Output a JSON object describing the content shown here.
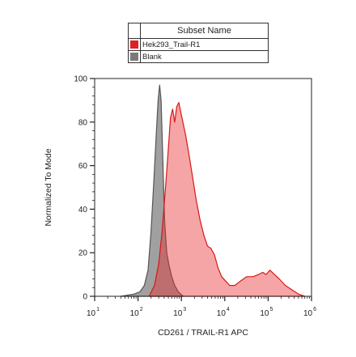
{
  "chart_data": {
    "type": "area",
    "title": "",
    "xlabel": "CD261 / TRAIL-R1 APC",
    "ylabel": "Normalized To Mode",
    "x_scale": "log",
    "xlim": [
      10,
      1000000
    ],
    "ylim": [
      0,
      100
    ],
    "yticks": [
      0,
      20,
      40,
      60,
      80,
      100
    ],
    "xticks": [
      {
        "base": "10",
        "exp": "1",
        "value": 10
      },
      {
        "base": "10",
        "exp": "2",
        "value": 100
      },
      {
        "base": "10",
        "exp": "3",
        "value": 1000
      },
      {
        "base": "10",
        "exp": "4",
        "value": 10000
      },
      {
        "base": "10",
        "exp": "5",
        "value": 100000
      },
      {
        "base": "10",
        "exp": "6",
        "value": 1000000
      }
    ],
    "legend": {
      "header": "Subset Name",
      "placement": "top-center"
    },
    "series": [
      {
        "name": "Blank",
        "color": "#7a7a7a",
        "points": [
          [
            40,
            0
          ],
          [
            80,
            1
          ],
          [
            110,
            2
          ],
          [
            140,
            5
          ],
          [
            170,
            12
          ],
          [
            200,
            30
          ],
          [
            230,
            52
          ],
          [
            260,
            72
          ],
          [
            290,
            90
          ],
          [
            315,
            97
          ],
          [
            340,
            90
          ],
          [
            370,
            65
          ],
          [
            410,
            35
          ],
          [
            460,
            20
          ],
          [
            520,
            14
          ],
          [
            600,
            9
          ],
          [
            700,
            5
          ],
          [
            850,
            2
          ],
          [
            1100,
            0
          ]
        ]
      },
      {
        "name": "Hek293_Trail-R1",
        "color": "#e02020",
        "points": [
          [
            180,
            0
          ],
          [
            240,
            5
          ],
          [
            300,
            15
          ],
          [
            360,
            30
          ],
          [
            430,
            50
          ],
          [
            500,
            68
          ],
          [
            560,
            82
          ],
          [
            630,
            86
          ],
          [
            700,
            80
          ],
          [
            780,
            87
          ],
          [
            870,
            89
          ],
          [
            960,
            85
          ],
          [
            1080,
            80
          ],
          [
            1250,
            74
          ],
          [
            1500,
            65
          ],
          [
            1800,
            55
          ],
          [
            2200,
            44
          ],
          [
            2700,
            35
          ],
          [
            3300,
            28
          ],
          [
            4000,
            23
          ],
          [
            4800,
            22
          ],
          [
            5800,
            19
          ],
          [
            7000,
            13
          ],
          [
            8500,
            9
          ],
          [
            10500,
            7
          ],
          [
            13000,
            5
          ],
          [
            17000,
            5
          ],
          [
            23000,
            7
          ],
          [
            32000,
            9
          ],
          [
            45000,
            9
          ],
          [
            60000,
            10
          ],
          [
            75000,
            11
          ],
          [
            90000,
            10
          ],
          [
            110000,
            12
          ],
          [
            140000,
            10
          ],
          [
            180000,
            8
          ],
          [
            250000,
            5
          ],
          [
            350000,
            3
          ],
          [
            500000,
            1
          ],
          [
            700000,
            0
          ]
        ]
      }
    ]
  }
}
